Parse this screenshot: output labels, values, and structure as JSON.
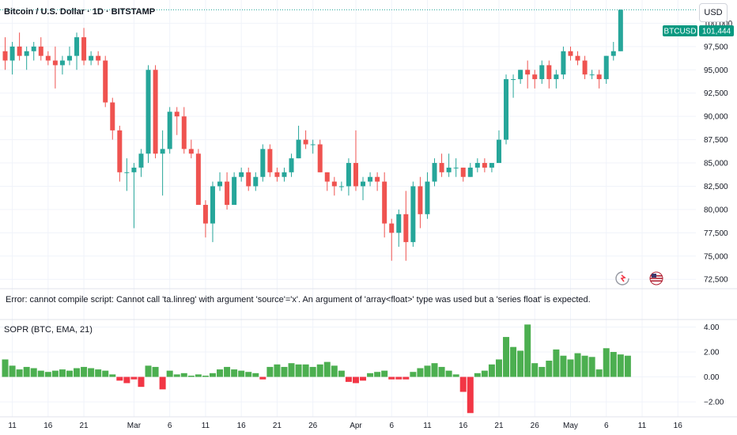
{
  "header": {
    "title": "Bitcoin / U.S. Dollar · 1D · BITSTAMP",
    "currency_button": "USD"
  },
  "error_message": "Error: cannot compile script: Cannot call 'ta.linreg' with argument 'source'='x'. An argument of 'array<float>' type was used but a 'series float' is expected.",
  "price_tag": {
    "symbol": "BTCUSD",
    "value": "101,444"
  },
  "colors": {
    "up": "#26a69a",
    "down": "#ef5350",
    "volume_up": "#4caf50",
    "volume_down": "#f23645",
    "dotted_line": "#26a69a"
  },
  "icons": [
    "replay-icon",
    "us-flag-icon"
  ],
  "chart_data": [
    {
      "type": "candlestick",
      "title": "Bitcoin / U.S. Dollar · 1D · BITSTAMP",
      "ylim": [
        71500,
        102500
      ],
      "y_ticks": [
        "100,000",
        "97,500",
        "95,000",
        "92,500",
        "90,000",
        "87,500",
        "85,000",
        "82,500",
        "80,000",
        "77,500",
        "75,000",
        "72,500"
      ],
      "y_tick_values": [
        100000,
        97500,
        95000,
        92500,
        90000,
        87500,
        85000,
        82500,
        80000,
        77500,
        75000,
        72500
      ],
      "last_price": 101444,
      "x_ticks": [
        "11",
        "16",
        "21",
        "Mar",
        "6",
        "11",
        "16",
        "21",
        "26",
        "Apr",
        "6",
        "11",
        "16",
        "21",
        "26",
        "May",
        "6",
        "11",
        "16"
      ],
      "candles": [
        [
          97000,
          98500,
          95000,
          96000
        ],
        [
          96000,
          98000,
          94500,
          97500
        ],
        [
          97500,
          99000,
          96000,
          96500
        ],
        [
          96500,
          97500,
          95000,
          97000
        ],
        [
          97000,
          98000,
          96000,
          97500
        ],
        [
          97500,
          98500,
          96000,
          96500
        ],
        [
          96500,
          97000,
          95500,
          96000
        ],
        [
          96000,
          97500,
          93000,
          95500
        ],
        [
          95500,
          96500,
          94500,
          96000
        ],
        [
          96000,
          97500,
          95500,
          96500
        ],
        [
          96500,
          99000,
          95000,
          98500
        ],
        [
          98500,
          99500,
          95500,
          96000
        ],
        [
          96000,
          97000,
          95500,
          96500
        ],
        [
          96500,
          97000,
          95500,
          96000
        ],
        [
          96000,
          96500,
          91000,
          91500
        ],
        [
          91500,
          92000,
          87500,
          88500
        ],
        [
          88500,
          89000,
          83000,
          84000
        ],
        [
          84000,
          85500,
          82000,
          84000
        ],
        [
          84000,
          85000,
          78000,
          84500
        ],
        [
          84500,
          86500,
          83500,
          86000
        ],
        [
          86000,
          95500,
          85000,
          95000
        ],
        [
          95000,
          95500,
          85500,
          86000
        ],
        [
          86000,
          88500,
          81500,
          86500
        ],
        [
          86500,
          91000,
          86000,
          90500
        ],
        [
          90500,
          91000,
          88000,
          90000
        ],
        [
          90000,
          91000,
          86000,
          86500
        ],
        [
          86500,
          87500,
          85500,
          86000
        ],
        [
          86000,
          86500,
          80500,
          80500
        ],
        [
          80500,
          81000,
          77000,
          78500
        ],
        [
          78500,
          83000,
          76500,
          82500
        ],
        [
          82500,
          84000,
          82000,
          83000
        ],
        [
          83000,
          84000,
          80000,
          80500
        ],
        [
          80500,
          84000,
          80500,
          83500
        ],
        [
          83500,
          84500,
          83000,
          84000
        ],
        [
          84000,
          84500,
          82000,
          82500
        ],
        [
          82500,
          84000,
          82000,
          83500
        ],
        [
          83500,
          87000,
          83000,
          86500
        ],
        [
          86500,
          87000,
          83500,
          84000
        ],
        [
          84000,
          84500,
          83000,
          83500
        ],
        [
          83500,
          84500,
          83000,
          84000
        ],
        [
          84000,
          86000,
          83500,
          85500
        ],
        [
          85500,
          89000,
          85500,
          87500
        ],
        [
          87500,
          88500,
          86500,
          87000
        ],
        [
          87000,
          87500,
          86000,
          87000
        ],
        [
          87000,
          87500,
          84000,
          84000
        ],
        [
          84000,
          84000,
          82000,
          83000
        ],
        [
          83000,
          83500,
          81500,
          82500
        ],
        [
          82500,
          83000,
          82000,
          82500
        ],
        [
          82500,
          85500,
          81500,
          85000
        ],
        [
          85000,
          88500,
          82000,
          82500
        ],
        [
          82500,
          83500,
          81000,
          83000
        ],
        [
          83000,
          84000,
          82500,
          83500
        ],
        [
          83500,
          84000,
          82000,
          83000
        ],
        [
          83000,
          84000,
          77000,
          78500
        ],
        [
          78500,
          79000,
          74500,
          77500
        ],
        [
          77500,
          80000,
          76000,
          79500
        ],
        [
          79500,
          82000,
          74500,
          76500
        ],
        [
          76500,
          83000,
          76000,
          82500
        ],
        [
          82500,
          83500,
          78000,
          79500
        ],
        [
          79500,
          84000,
          79000,
          83000
        ],
        [
          83000,
          85500,
          82500,
          85000
        ],
        [
          85000,
          86000,
          83500,
          84000
        ],
        [
          84000,
          86000,
          83500,
          84500
        ],
        [
          84500,
          85500,
          83500,
          84500
        ],
        [
          84500,
          84500,
          83000,
          83500
        ],
        [
          83500,
          85000,
          83500,
          84500
        ],
        [
          84500,
          85500,
          84000,
          85000
        ],
        [
          85000,
          85500,
          84000,
          84500
        ],
        [
          84500,
          85000,
          84000,
          85000
        ],
        [
          85000,
          88500,
          85000,
          87500
        ],
        [
          87500,
          94500,
          87000,
          94000
        ],
        [
          94000,
          94500,
          92000,
          94000
        ],
        [
          94000,
          95000,
          93500,
          95000
        ],
        [
          95000,
          96000,
          93000,
          94500
        ],
        [
          94500,
          95000,
          93000,
          94000
        ],
        [
          94000,
          96000,
          93500,
          95500
        ],
        [
          95500,
          96000,
          93000,
          94000
        ],
        [
          94000,
          95000,
          93000,
          94500
        ],
        [
          94500,
          97500,
          94000,
          97000
        ],
        [
          97000,
          97500,
          96000,
          96500
        ],
        [
          96500,
          97000,
          95500,
          96000
        ],
        [
          96000,
          96500,
          94000,
          94500
        ],
        [
          94500,
          95000,
          94000,
          94500
        ],
        [
          94500,
          95000,
          93000,
          94000
        ],
        [
          94000,
          96500,
          93500,
          96500
        ],
        [
          96500,
          98000,
          96000,
          97000
        ],
        [
          97000,
          101500,
          97000,
          101444
        ]
      ],
      "candles_note": "[open, high, low, close] in USD, daily"
    },
    {
      "type": "bar",
      "title": "SOPR (BTC, EMA, 21)",
      "ylim": [
        -3.2,
        4.6
      ],
      "y_ticks": [
        "4.00",
        "2.00",
        "0.00",
        "−2.00"
      ],
      "y_tick_values": [
        4,
        2,
        0,
        -2
      ],
      "values": [
        1.4,
        0.9,
        0.6,
        0.8,
        0.7,
        0.5,
        0.4,
        0.5,
        0.6,
        0.5,
        0.7,
        0.8,
        0.7,
        0.6,
        0.5,
        0.2,
        -0.3,
        -0.5,
        -0.2,
        -0.8,
        0.9,
        0.8,
        -1.0,
        0.5,
        0.2,
        0.3,
        0.1,
        0.2,
        0.1,
        0.3,
        0.6,
        0.8,
        0.6,
        0.5,
        0.4,
        0.3,
        -0.2,
        0.8,
        1.0,
        0.8,
        1.1,
        1.0,
        1.0,
        0.8,
        1.0,
        1.2,
        0.9,
        0.5,
        -0.4,
        -0.5,
        -0.3,
        0.3,
        0.4,
        0.5,
        -0.2,
        -0.2,
        -0.2,
        0.4,
        0.7,
        0.9,
        1.1,
        0.8,
        0.5,
        0.2,
        -1.2,
        -2.9,
        0.3,
        0.5,
        1.0,
        1.4,
        3.2,
        2.4,
        2.1,
        4.2,
        1.1,
        0.8,
        1.3,
        2.2,
        1.7,
        1.4,
        1.9,
        1.7,
        1.6,
        0.6,
        2.3,
        2.0,
        1.8,
        1.7
      ]
    }
  ]
}
